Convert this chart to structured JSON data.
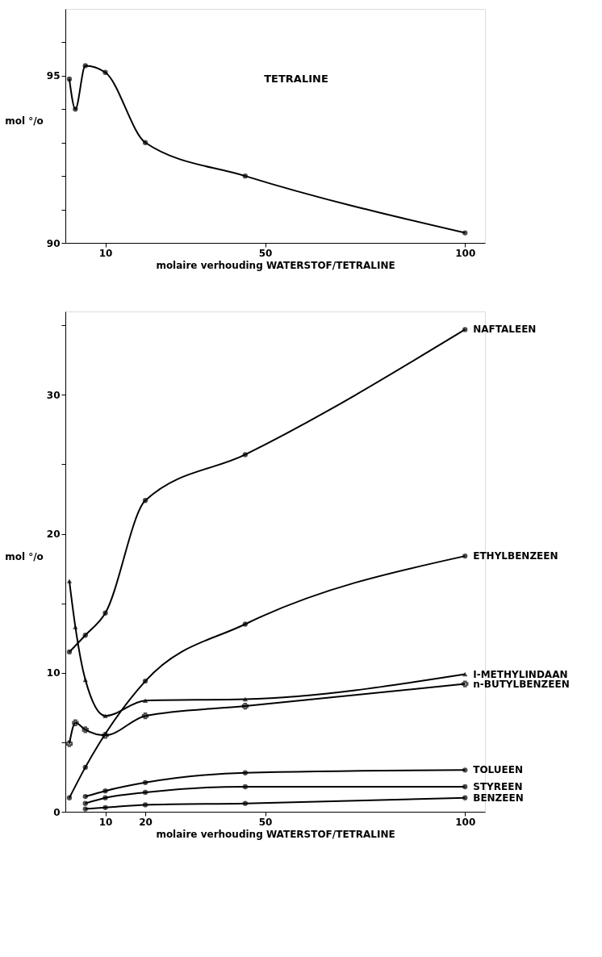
{
  "chart_data": [
    {
      "type": "line",
      "ylabel": "mol °/o",
      "xlabel": "molaire verhouding WATERSTOF/TETRALINE",
      "annotations": [
        "TETRALINE"
      ],
      "xlim": [
        0,
        105
      ],
      "ylim": [
        90,
        97
      ],
      "xticks": [
        10,
        50,
        100
      ],
      "yticks": [
        90,
        {
          "value": 91,
          "label": null
        },
        {
          "value": 92,
          "label": null
        },
        {
          "value": 93,
          "label": null
        },
        {
          "value": 94,
          "label": null
        },
        95,
        {
          "value": 96,
          "label": null
        }
      ],
      "grid": false,
      "marker": "circle",
      "line_style": "solid",
      "series": [
        {
          "color": "#000000",
          "x": [
            1,
            2.5,
            5,
            10,
            20,
            45,
            100
          ],
          "values": [
            94.9,
            94.0,
            95.3,
            95.1,
            93.0,
            92.0,
            90.3
          ]
        }
      ]
    },
    {
      "type": "line",
      "ylabel": "mol °/o",
      "xlabel": "molaire verhouding WATERSTOF/TETRALINE",
      "xlim": [
        0,
        105
      ],
      "ylim": [
        0,
        36
      ],
      "xticks": [
        10,
        20,
        50,
        100
      ],
      "yticks": [
        0,
        {
          "value": 5,
          "label": null
        },
        10,
        {
          "value": 15,
          "label": null
        },
        20,
        {
          "value": 25,
          "label": null
        },
        30,
        {
          "value": 35,
          "label": null
        }
      ],
      "grid": false,
      "legend": false,
      "line_style": "solid",
      "series": [
        {
          "name": "NAFTALEEN",
          "color": "#000000",
          "marker": "circle",
          "x": [
            1,
            5,
            10,
            20,
            45,
            100
          ],
          "values": [
            11.5,
            12.7,
            14.3,
            22.4,
            25.7,
            34.7
          ]
        },
        {
          "name": "ETHYLBENZEEN",
          "color": "#000000",
          "marker": "circle",
          "x": [
            1,
            5,
            20,
            45,
            100
          ],
          "values": [
            1.0,
            3.2,
            9.4,
            13.5,
            18.4
          ]
        },
        {
          "name": "I-METHYLINDAAN",
          "color": "#000000",
          "marker": "triangle",
          "x": [
            1,
            2.5,
            5,
            10,
            20,
            45,
            100
          ],
          "values": [
            16.6,
            13.3,
            9.5,
            6.9,
            8.0,
            8.1,
            9.9
          ]
        },
        {
          "name": "n-BUTYLBENZEEN",
          "color": "#000000",
          "marker": "cross",
          "x": [
            1,
            2.5,
            5,
            10,
            20,
            45,
            100
          ],
          "values": [
            4.9,
            6.4,
            5.9,
            5.5,
            6.9,
            7.6,
            9.2
          ]
        },
        {
          "name": "TOLUEEN",
          "color": "#000000",
          "marker": "circle",
          "x": [
            5,
            10,
            20,
            45,
            100
          ],
          "values": [
            1.1,
            1.5,
            2.1,
            2.8,
            3.0
          ]
        },
        {
          "name": "STYREEN",
          "color": "#000000",
          "marker": "circle",
          "x": [
            5,
            10,
            20,
            45,
            100
          ],
          "values": [
            0.6,
            1.0,
            1.4,
            1.8,
            1.8
          ]
        },
        {
          "name": "BENZEEN",
          "color": "#000000",
          "marker": "circle",
          "x": [
            5,
            10,
            20,
            45,
            100
          ],
          "values": [
            0.2,
            0.3,
            0.5,
            0.6,
            1.0
          ]
        }
      ]
    }
  ]
}
